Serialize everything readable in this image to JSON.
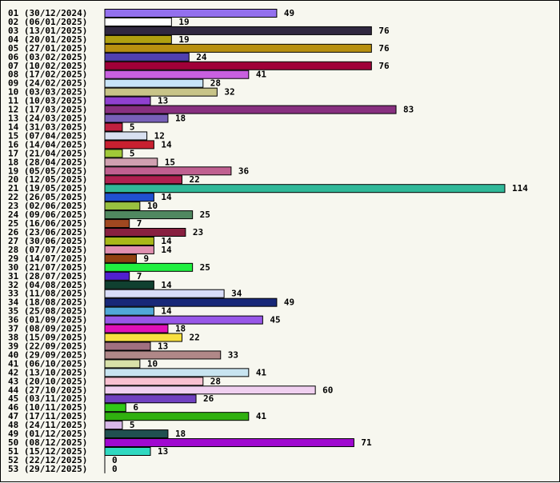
{
  "chart_data": {
    "type": "bar",
    "orientation": "horizontal",
    "categories": [
      "01 (30/12/2024)",
      "02 (06/01/2025)",
      "03 (13/01/2025)",
      "04 (20/01/2025)",
      "05 (27/01/2025)",
      "06 (03/02/2025)",
      "07 (10/02/2025)",
      "08 (17/02/2025)",
      "09 (24/02/2025)",
      "10 (03/03/2025)",
      "11 (10/03/2025)",
      "12 (17/03/2025)",
      "13 (24/03/2025)",
      "14 (31/03/2025)",
      "15 (07/04/2025)",
      "16 (14/04/2025)",
      "17 (21/04/2025)",
      "18 (28/04/2025)",
      "19 (05/05/2025)",
      "20 (12/05/2025)",
      "21 (19/05/2025)",
      "22 (26/05/2025)",
      "23 (02/06/2025)",
      "24 (09/06/2025)",
      "25 (16/06/2025)",
      "26 (23/06/2025)",
      "27 (30/06/2025)",
      "28 (07/07/2025)",
      "29 (14/07/2025)",
      "30 (21/07/2025)",
      "31 (28/07/2025)",
      "32 (04/08/2025)",
      "33 (11/08/2025)",
      "34 (18/08/2025)",
      "35 (25/08/2025)",
      "36 (01/09/2025)",
      "37 (08/09/2025)",
      "38 (15/09/2025)",
      "39 (22/09/2025)",
      "40 (29/09/2025)",
      "41 (06/10/2025)",
      "42 (13/10/2025)",
      "43 (20/10/2025)",
      "44 (27/10/2025)",
      "45 (03/11/2025)",
      "46 (10/11/2025)",
      "47 (17/11/2025)",
      "48 (24/11/2025)",
      "49 (01/12/2025)",
      "50 (08/12/2025)",
      "51 (15/12/2025)",
      "52 (22/12/2025)",
      "53 (29/12/2025)"
    ],
    "values": [
      49,
      19,
      76,
      19,
      76,
      24,
      76,
      41,
      28,
      32,
      13,
      83,
      18,
      5,
      12,
      14,
      5,
      15,
      36,
      22,
      114,
      14,
      10,
      25,
      7,
      23,
      14,
      14,
      9,
      25,
      7,
      14,
      34,
      49,
      14,
      45,
      18,
      22,
      13,
      33,
      10,
      41,
      28,
      60,
      26,
      6,
      41,
      5,
      18,
      71,
      13,
      0,
      0
    ],
    "colors": [
      "#9370ee",
      "#ffffff",
      "#302840",
      "#b0a010",
      "#b89010",
      "#5040b0",
      "#a00038",
      "#c860e0",
      "#c8e4f8",
      "#c8c488",
      "#9040d0",
      "#883080",
      "#7860b8",
      "#c02040",
      "#d8e0f0",
      "#c82030",
      "#a0c838",
      "#d0a0b0",
      "#c06090",
      "#b02050",
      "#30b898",
      "#2050d0",
      "#98c040",
      "#508860",
      "#a04820",
      "#882040",
      "#a8b818",
      "#e090b0",
      "#904010",
      "#20f040",
      "#5020d0",
      "#104030",
      "#d8dcf8",
      "#182878",
      "#50a8d8",
      "#9858e8",
      "#e010b8",
      "#f8e040",
      "#a07080",
      "#b08888",
      "#d8e0a8",
      "#c8e4f0",
      "#f8c0d0",
      "#f0d0f0",
      "#7040c0",
      "#30c818",
      "#30b010",
      "#d8b8e8",
      "#205050",
      "#a008d0",
      "#30d8c0",
      "#ffffff",
      "#ffffff"
    ],
    "xlim": [
      0,
      114
    ],
    "title": "",
    "xlabel": "",
    "ylabel": "",
    "grid": false,
    "legend": "none"
  }
}
